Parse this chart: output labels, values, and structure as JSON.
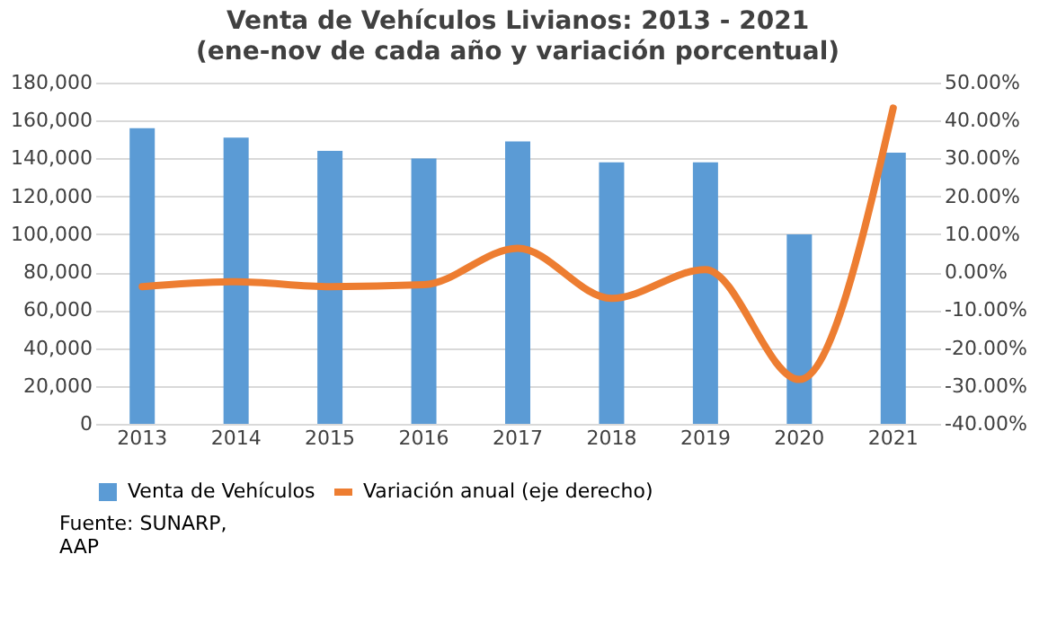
{
  "chart_data": {
    "type": "bar",
    "title": "Venta de Vehículos Livianos: 2013 - 2021",
    "subtitle": "(ene-nov de cada año y variación porcentual)",
    "categories": [
      "2013",
      "2014",
      "2015",
      "2016",
      "2017",
      "2018",
      "2019",
      "2020",
      "2021"
    ],
    "series": [
      {
        "name": "Venta de Vehículos",
        "color": "#5b9bd5",
        "values": [
          156000,
          151000,
          144000,
          140000,
          149000,
          138000,
          138000,
          100000,
          143000
        ]
      },
      {
        "name": "Variación anual (eje derecho)",
        "type": "line",
        "axis": "y2",
        "color": "#ed7d31",
        "values": [
          -3.8,
          -2.5,
          -3.8,
          -3.3,
          6.3,
          -6.9,
          0.7,
          -28.3,
          43.3
        ]
      }
    ],
    "ylim": [
      0,
      180000
    ],
    "yticks": [
      0,
      {
        "value": 20000,
        "label": "20,000"
      },
      {
        "value": 40000,
        "label": "40,000"
      },
      {
        "value": 60000,
        "label": "60,000"
      },
      {
        "value": 80000,
        "label": "80,000"
      },
      {
        "value": 100000,
        "label": "100,000"
      },
      {
        "value": 120000,
        "label": "120,000"
      },
      {
        "value": 140000,
        "label": "140,000"
      },
      {
        "value": 160000,
        "label": "160,000"
      },
      {
        "value": 180000,
        "label": "180,000"
      }
    ],
    "y2lim": [
      -40,
      50
    ],
    "y2ticks": [
      {
        "value": -40,
        "label": "-40.00%"
      },
      {
        "value": -30,
        "label": "-30.00%"
      },
      {
        "value": -20,
        "label": "-20.00%"
      },
      {
        "value": -10,
        "label": "-10.00%"
      },
      {
        "value": 0,
        "label": "0.00%"
      },
      {
        "value": 10,
        "label": "10.00%"
      },
      {
        "value": 20,
        "label": "20.00%"
      },
      {
        "value": 30,
        "label": "30.00%"
      },
      {
        "value": 40,
        "label": "40.00%"
      },
      {
        "value": 50,
        "label": "50.00%"
      }
    ],
    "grid": "y",
    "legend": "bottom",
    "marker": "none",
    "line_style": "solid",
    "annotations": [
      "Fuente: SUNARP,\nAAP"
    ]
  }
}
